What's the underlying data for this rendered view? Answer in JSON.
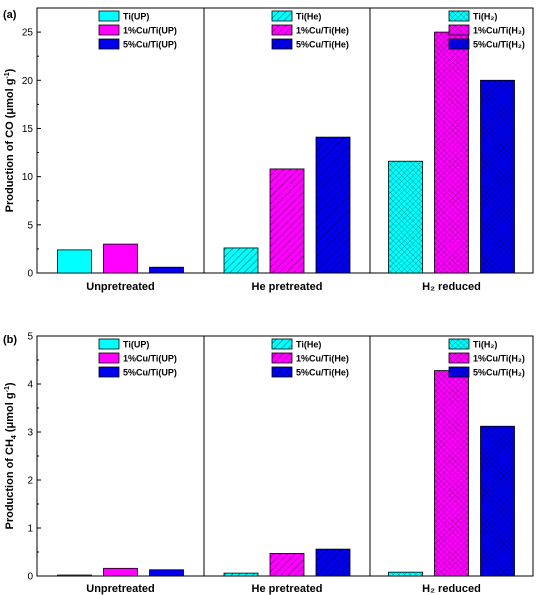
{
  "chart_data": [
    {
      "type": "bar",
      "panel_label": "(a)",
      "ylabel": "Production of CO (μmol g⁻¹)",
      "ylabel_parts": [
        "Production of CO (μmol g",
        "-1",
        ")"
      ],
      "ylim": [
        0,
        27.5
      ],
      "yticks": [
        0,
        5,
        10,
        15,
        20,
        25
      ],
      "grid": false,
      "groups": [
        {
          "category": "Unpretreated",
          "legend_placement": "top-left",
          "bars": [
            {
              "name": "Ti(UP)",
              "value": 2.4,
              "fill": "#00ffff",
              "pattern": "solid"
            },
            {
              "name": "1%Cu/Ti(UP)",
              "value": 3.0,
              "fill": "#ff00ff",
              "pattern": "solid"
            },
            {
              "name": "5%Cu/Ti(UP)",
              "value": 0.6,
              "fill": "#0000ee",
              "pattern": "solid"
            }
          ]
        },
        {
          "category": "He pretreated",
          "legend_placement": "top-left",
          "bars": [
            {
              "name": "Ti(He)",
              "value": 2.6,
              "fill": "#00ffff",
              "pattern": "hatch"
            },
            {
              "name": "1%Cu/Ti(He)",
              "value": 10.8,
              "fill": "#ff00ff",
              "pattern": "hatch"
            },
            {
              "name": "5%Cu/Ti(He)",
              "value": 14.1,
              "fill": "#0000ee",
              "pattern": "hatch"
            }
          ]
        },
        {
          "category": "H₂ reduced",
          "legend_placement": "top-right",
          "bars": [
            {
              "name": "Ti(H₂)",
              "value": 11.6,
              "fill": "#00ffff",
              "pattern": "cross"
            },
            {
              "name": "1%Cu/Ti(H₂)",
              "value": 25.0,
              "fill": "#ff00ff",
              "pattern": "cross"
            },
            {
              "name": "5%Cu/Ti(H₂)",
              "value": 20.0,
              "fill": "#0000ee",
              "pattern": "cross"
            }
          ]
        }
      ]
    },
    {
      "type": "bar",
      "panel_label": "(b)",
      "ylabel": "Production of CH₄ (μmol g⁻¹)",
      "ylabel_parts": [
        "Production of CH",
        "4",
        " (μmol g",
        "-1",
        ")"
      ],
      "ylim": [
        0,
        5
      ],
      "yticks": [
        0,
        1,
        2,
        3,
        4,
        5
      ],
      "grid": false,
      "groups": [
        {
          "category": "Unpretreated",
          "legend_placement": "top-left",
          "bars": [
            {
              "name": "Ti(UP)",
              "value": 0.02,
              "fill": "#00ffff",
              "pattern": "solid"
            },
            {
              "name": "1%Cu/Ti(UP)",
              "value": 0.16,
              "fill": "#ff00ff",
              "pattern": "solid"
            },
            {
              "name": "5%Cu/Ti(UP)",
              "value": 0.13,
              "fill": "#0000ee",
              "pattern": "solid"
            }
          ]
        },
        {
          "category": "He pretreated",
          "legend_placement": "top-left",
          "bars": [
            {
              "name": "Ti(He)",
              "value": 0.06,
              "fill": "#00ffff",
              "pattern": "hatch"
            },
            {
              "name": "1%Cu/Ti(He)",
              "value": 0.47,
              "fill": "#ff00ff",
              "pattern": "hatch"
            },
            {
              "name": "5%Cu/Ti(He)",
              "value": 0.56,
              "fill": "#0000ee",
              "pattern": "hatch"
            }
          ]
        },
        {
          "category": "H₂ reduced",
          "legend_placement": "top-right",
          "bars": [
            {
              "name": "Ti(H₂)",
              "value": 0.08,
              "fill": "#00ffff",
              "pattern": "cross"
            },
            {
              "name": "1%Cu/Ti(H₂)",
              "value": 4.28,
              "fill": "#ff00ff",
              "pattern": "cross"
            },
            {
              "name": "5%Cu/Ti(H₂)",
              "value": 3.12,
              "fill": "#0000ee",
              "pattern": "cross"
            }
          ]
        }
      ]
    }
  ]
}
